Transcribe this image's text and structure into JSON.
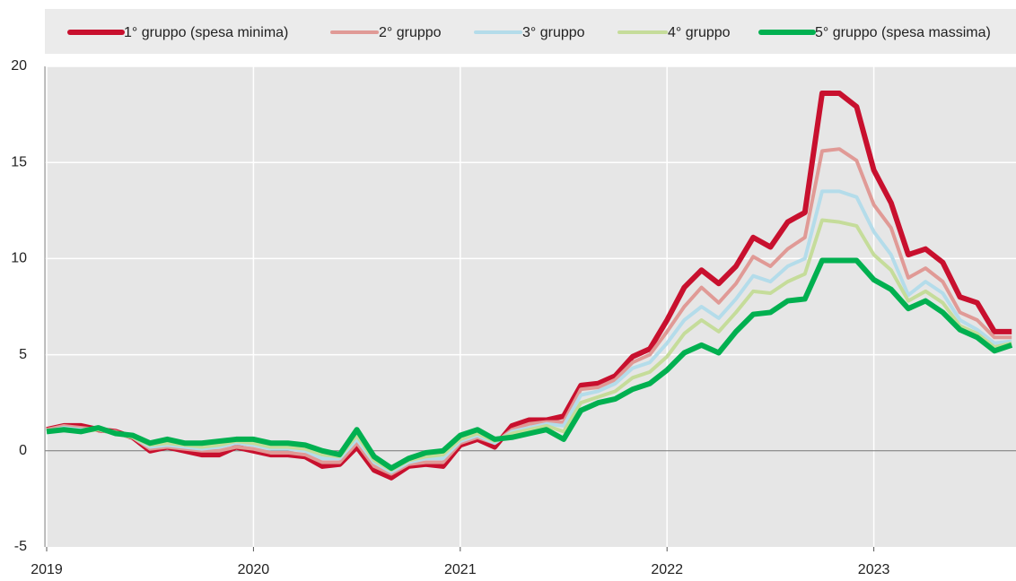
{
  "chart_data": {
    "type": "line",
    "categories": [
      "2019",
      null,
      null,
      null,
      null,
      null,
      null,
      null,
      null,
      null,
      null,
      null,
      "2020",
      null,
      null,
      null,
      null,
      null,
      null,
      null,
      null,
      null,
      null,
      null,
      "2021",
      null,
      null,
      null,
      null,
      null,
      null,
      null,
      null,
      null,
      null,
      null,
      "2022",
      null,
      null,
      null,
      null,
      null,
      null,
      null,
      null,
      null,
      null,
      null,
      "2023",
      null,
      null,
      null,
      null,
      null,
      null,
      null,
      null
    ],
    "ylim": [
      -5,
      20
    ],
    "yticks": [
      -5,
      0,
      5,
      10,
      15,
      20
    ],
    "grid": true,
    "legend": "top",
    "series": [
      {
        "name": "1° gruppo (spesa minima)",
        "color": "#c8102e",
        "values": [
          1.1,
          1.3,
          1.3,
          1.1,
          1.0,
          0.7,
          0.0,
          0.2,
          0.0,
          -0.2,
          -0.2,
          0.2,
          0.0,
          -0.2,
          -0.2,
          -0.3,
          -0.8,
          -0.7,
          0.2,
          -1.0,
          -1.4,
          -0.8,
          -0.7,
          -0.8,
          0.3,
          0.6,
          0.2,
          1.3,
          1.6,
          1.6,
          1.8,
          3.4,
          3.5,
          3.9,
          4.9,
          5.3,
          6.8,
          8.5,
          9.4,
          8.7,
          9.6,
          11.1,
          10.6,
          11.9,
          12.4,
          18.6,
          18.6,
          17.9,
          14.6,
          12.9,
          10.2,
          10.5,
          9.8,
          8.0,
          7.7,
          6.2,
          6.2
        ]
      },
      {
        "name": "2° gruppo",
        "color": "#e09a96",
        "values": [
          1.1,
          1.3,
          1.2,
          1.1,
          1.0,
          0.7,
          0.1,
          0.2,
          0.1,
          0.0,
          0.0,
          0.2,
          0.1,
          -0.1,
          -0.1,
          -0.2,
          -0.6,
          -0.6,
          0.4,
          -0.8,
          -1.2,
          -0.7,
          -0.6,
          -0.6,
          0.4,
          0.7,
          0.4,
          1.1,
          1.4,
          1.5,
          1.5,
          3.2,
          3.3,
          3.7,
          4.6,
          5.0,
          6.2,
          7.5,
          8.5,
          7.7,
          8.7,
          10.1,
          9.6,
          10.5,
          11.1,
          15.6,
          15.7,
          15.1,
          12.8,
          11.6,
          9.0,
          9.5,
          8.8,
          7.2,
          6.8,
          5.9,
          5.9
        ]
      },
      {
        "name": "3° gruppo",
        "color": "#b4dcea",
        "values": [
          1.0,
          1.2,
          1.1,
          1.1,
          0.9,
          0.7,
          0.2,
          0.3,
          0.2,
          0.1,
          0.2,
          0.4,
          0.3,
          0.1,
          0.1,
          0.0,
          -0.4,
          -0.4,
          0.6,
          -0.6,
          -1.1,
          -0.6,
          -0.4,
          -0.4,
          0.5,
          0.8,
          0.4,
          1.0,
          1.2,
          1.4,
          1.3,
          2.9,
          3.1,
          3.5,
          4.3,
          4.6,
          5.6,
          6.8,
          7.5,
          6.9,
          7.9,
          9.1,
          8.8,
          9.6,
          10.0,
          13.5,
          13.5,
          13.2,
          11.4,
          10.2,
          8.1,
          8.8,
          8.2,
          6.8,
          6.3,
          5.6,
          5.7
        ]
      },
      {
        "name": "4° gruppo",
        "color": "#c5dc9a",
        "values": [
          1.0,
          1.1,
          1.0,
          1.1,
          0.9,
          0.7,
          0.3,
          0.4,
          0.3,
          0.2,
          0.3,
          0.5,
          0.4,
          0.2,
          0.2,
          0.1,
          -0.2,
          -0.3,
          0.8,
          -0.5,
          -1.0,
          -0.5,
          -0.3,
          -0.2,
          0.6,
          0.9,
          0.5,
          0.9,
          1.1,
          1.3,
          1.0,
          2.5,
          2.8,
          3.1,
          3.8,
          4.1,
          4.9,
          6.1,
          6.8,
          6.2,
          7.2,
          8.3,
          8.2,
          8.8,
          9.2,
          12.0,
          11.9,
          11.7,
          10.2,
          9.4,
          7.8,
          8.3,
          7.7,
          6.5,
          6.1,
          5.4,
          5.6
        ]
      },
      {
        "name": "5° gruppo (spesa massima)",
        "color": "#00b050",
        "values": [
          1.0,
          1.1,
          1.0,
          1.2,
          0.9,
          0.8,
          0.4,
          0.6,
          0.4,
          0.4,
          0.5,
          0.6,
          0.6,
          0.4,
          0.4,
          0.3,
          0.0,
          -0.2,
          1.1,
          -0.3,
          -0.9,
          -0.4,
          -0.1,
          0.0,
          0.8,
          1.1,
          0.6,
          0.7,
          0.9,
          1.1,
          0.6,
          2.1,
          2.5,
          2.7,
          3.2,
          3.5,
          4.2,
          5.1,
          5.5,
          5.1,
          6.2,
          7.1,
          7.2,
          7.8,
          7.9,
          9.9,
          9.9,
          9.9,
          8.9,
          8.4,
          7.4,
          7.8,
          7.2,
          6.3,
          5.9,
          5.2,
          5.5
        ]
      }
    ]
  }
}
